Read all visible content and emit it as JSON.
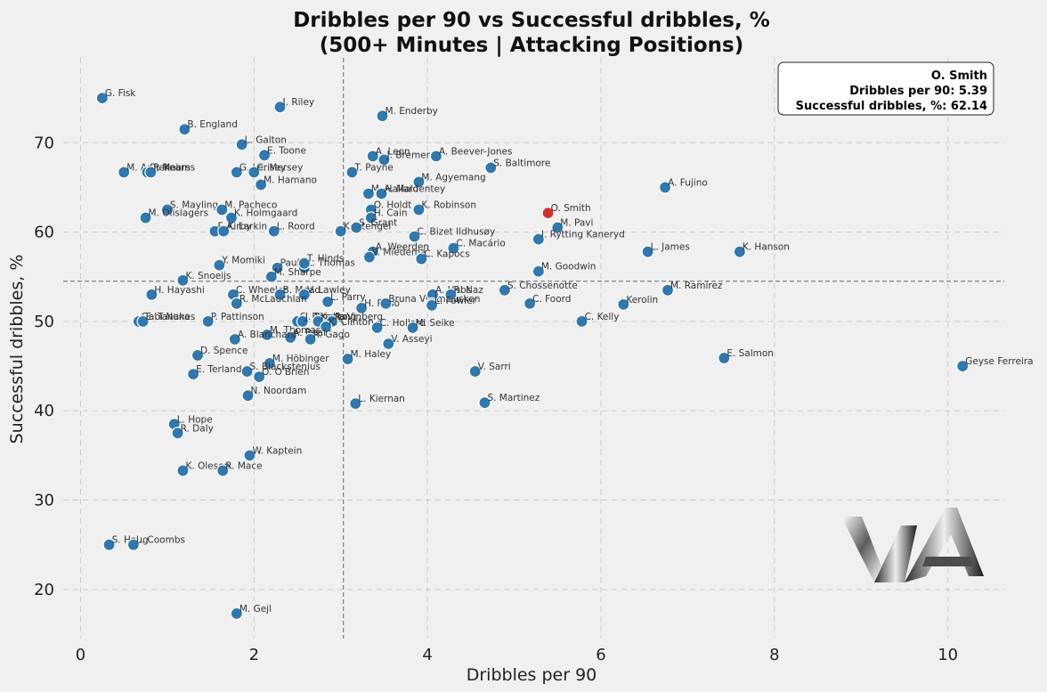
{
  "chart_data": {
    "type": "scatter",
    "title": "Dribbles per 90 vs Successful dribbles, %",
    "subtitle": "(500+ Minutes | Attacking Positions)",
    "xlabel": "Dribbles per 90",
    "ylabel": "Successful dribbles, %",
    "xlim": [
      -0.2,
      10.65
    ],
    "ylim": [
      14.5,
      79.5
    ],
    "xticks": [
      0,
      2,
      4,
      6,
      8,
      10
    ],
    "yticks": [
      20,
      30,
      40,
      50,
      60,
      70
    ],
    "grid": true,
    "reference_lines": {
      "x_mean": 3.03,
      "y_mean": 54.5
    },
    "colors": {
      "point": "#2f78b0",
      "highlight": "#d62f2f",
      "background": "#f0f0f0",
      "grid": "#cccccc",
      "ref_line": "#808080"
    },
    "highlight": {
      "name": "O. Smith",
      "x": 5.39,
      "y": 62.14
    },
    "annotation": {
      "name": "O. Smith",
      "line1": "Dribbles per 90: 5.39",
      "line2": "Successful dribbles, %: 62.14"
    },
    "points": [
      {
        "name": "G. Fisk",
        "x": 0.25,
        "y": 75.0
      },
      {
        "name": "B. England",
        "x": 1.2,
        "y": 71.5
      },
      {
        "name": "I. Riley",
        "x": 2.3,
        "y": 74.0
      },
      {
        "name": "M. Enderby",
        "x": 3.48,
        "y": 73.0
      },
      {
        "name": "L. Galton",
        "x": 1.86,
        "y": 69.8
      },
      {
        "name": "E. Toone",
        "x": 2.12,
        "y": 68.6
      },
      {
        "name": "A. Leon",
        "x": 3.37,
        "y": 68.5
      },
      {
        "name": "J. Bremer",
        "x": 3.5,
        "y": 68.1
      },
      {
        "name": "A. Beever-Jones",
        "x": 4.1,
        "y": 68.5
      },
      {
        "name": "S. Baltimore",
        "x": 4.73,
        "y": 67.2
      },
      {
        "name": "M. Angelini",
        "x": 0.5,
        "y": 66.7
      },
      {
        "name": "R. Mears",
        "x": 0.77,
        "y": 66.7
      },
      {
        "name": "P. Kearns",
        "x": 0.81,
        "y": 66.7
      },
      {
        "name": "G. Lerisey",
        "x": 1.8,
        "y": 66.7
      },
      {
        "name": "C. Mersey",
        "x": 2.0,
        "y": 66.7
      },
      {
        "name": "T. Payne",
        "x": 3.13,
        "y": 66.7
      },
      {
        "name": "M. Hamano",
        "x": 2.08,
        "y": 65.3
      },
      {
        "name": "M. Agyemang",
        "x": 3.9,
        "y": 65.6
      },
      {
        "name": "M. Hallard",
        "x": 3.32,
        "y": 64.3
      },
      {
        "name": "A. Maldentey",
        "x": 3.47,
        "y": 64.3
      },
      {
        "name": "A. Fujino",
        "x": 6.74,
        "y": 65.0
      },
      {
        "name": "S. Mayling",
        "x": 1.0,
        "y": 62.5
      },
      {
        "name": "M. Pacheco",
        "x": 1.63,
        "y": 62.5
      },
      {
        "name": "M. Olislagers",
        "x": 0.75,
        "y": 61.6
      },
      {
        "name": "K. Holmgaard",
        "x": 1.74,
        "y": 61.6
      },
      {
        "name": "O. Holdt",
        "x": 3.35,
        "y": 62.5
      },
      {
        "name": "H. Cain",
        "x": 3.35,
        "y": 61.6
      },
      {
        "name": "K. Robinson",
        "x": 3.9,
        "y": 62.5
      },
      {
        "name": "O. Smith",
        "x": 5.39,
        "y": 62.14
      },
      {
        "name": "M. Pavi",
        "x": 5.5,
        "y": 60.5
      },
      {
        "name": "F. Kirby",
        "x": 1.55,
        "y": 60.1
      },
      {
        "name": "A. Larkin",
        "x": 1.65,
        "y": 60.1
      },
      {
        "name": "L. Roord",
        "x": 2.23,
        "y": 60.1
      },
      {
        "name": "K. Stengel",
        "x": 3.0,
        "y": 60.1
      },
      {
        "name": "S. Grant",
        "x": 3.18,
        "y": 60.5
      },
      {
        "name": "C. Bizet Ildhusøy",
        "x": 3.85,
        "y": 59.5
      },
      {
        "name": "C. Macário",
        "x": 4.3,
        "y": 58.2
      },
      {
        "name": "I. Rytting Kaneryd",
        "x": 5.28,
        "y": 59.2
      },
      {
        "name": "A. Weerden",
        "x": 3.37,
        "y": 57.8
      },
      {
        "name": "V. Miedema",
        "x": 3.33,
        "y": 57.2
      },
      {
        "name": "C. Kapocs",
        "x": 3.93,
        "y": 57.0
      },
      {
        "name": "L. James",
        "x": 6.54,
        "y": 57.8
      },
      {
        "name": "K. Hanson",
        "x": 7.6,
        "y": 57.8
      },
      {
        "name": "Y. Momiki",
        "x": 1.6,
        "y": 56.3
      },
      {
        "name": "Paula",
        "x": 2.27,
        "y": 56.0
      },
      {
        "name": "L. Thomas",
        "x": 2.58,
        "y": 56.0
      },
      {
        "name": "T. Hinds",
        "x": 2.58,
        "y": 56.5
      },
      {
        "name": "M. Sharpe",
        "x": 2.2,
        "y": 55.0
      },
      {
        "name": "M. Goodwin",
        "x": 5.28,
        "y": 55.6
      },
      {
        "name": "K. Snoeijs",
        "x": 1.18,
        "y": 54.6
      },
      {
        "name": "H. Hayashi",
        "x": 0.82,
        "y": 53.0
      },
      {
        "name": "C. Wheeler",
        "x": 1.76,
        "y": 53.0
      },
      {
        "name": "B. Mead",
        "x": 2.3,
        "y": 53.0
      },
      {
        "name": "V. Lawley",
        "x": 2.58,
        "y": 53.0
      },
      {
        "name": "R. McLauchlan",
        "x": 1.8,
        "y": 52.0
      },
      {
        "name": "L. Parry",
        "x": 2.85,
        "y": 52.2
      },
      {
        "name": "H. Raso",
        "x": 3.24,
        "y": 51.5
      },
      {
        "name": "Bruna Vilamala",
        "x": 3.52,
        "y": 52.0
      },
      {
        "name": "A. Hobs",
        "x": 4.06,
        "y": 53.0
      },
      {
        "name": "L. Nüsken",
        "x": 4.05,
        "y": 52.0
      },
      {
        "name": "R. Naz",
        "x": 4.27,
        "y": 53.0
      },
      {
        "name": "L. Fowler",
        "x": 4.05,
        "y": 51.8
      },
      {
        "name": "S. Chossenotte",
        "x": 4.89,
        "y": 53.5
      },
      {
        "name": "C. Foord",
        "x": 5.18,
        "y": 52.0
      },
      {
        "name": "Kerolin",
        "x": 6.26,
        "y": 51.9
      },
      {
        "name": "M. Ramírez",
        "x": 6.77,
        "y": 53.5
      },
      {
        "name": "Gabi Nunes",
        "x": 0.67,
        "y": 50.0
      },
      {
        "name": "E. Tanaka",
        "x": 0.72,
        "y": 50.0
      },
      {
        "name": "P. Pattinson",
        "x": 1.47,
        "y": 50.0
      },
      {
        "name": "S. Picanço",
        "x": 2.5,
        "y": 50.0
      },
      {
        "name": "J. Pinedo",
        "x": 2.56,
        "y": 50.0
      },
      {
        "name": "K. Kang",
        "x": 2.74,
        "y": 50.0
      },
      {
        "name": "R. Vinberg",
        "x": 2.9,
        "y": 50.0
      },
      {
        "name": "K. Clinton",
        "x": 2.83,
        "y": 49.4
      },
      {
        "name": "C. Hollard",
        "x": 3.42,
        "y": 49.3
      },
      {
        "name": "M. Seike",
        "x": 3.83,
        "y": 49.3
      },
      {
        "name": "C. Kelly",
        "x": 5.78,
        "y": 50.0
      },
      {
        "name": "M. Thomas",
        "x": 2.15,
        "y": 48.5
      },
      {
        "name": "A. Beal",
        "x": 2.42,
        "y": 48.2
      },
      {
        "name": "R. Gago",
        "x": 2.65,
        "y": 48.0
      },
      {
        "name": "A. Blanchard",
        "x": 1.78,
        "y": 48.0
      },
      {
        "name": "V. Asseyi",
        "x": 3.55,
        "y": 47.5
      },
      {
        "name": "D. Spence",
        "x": 1.35,
        "y": 46.2
      },
      {
        "name": "M. Höbinger",
        "x": 2.18,
        "y": 45.3
      },
      {
        "name": "M. Haley",
        "x": 3.08,
        "y": 45.8
      },
      {
        "name": "E. Salmon",
        "x": 7.42,
        "y": 45.9
      },
      {
        "name": "Geyse Ferreira",
        "x": 10.17,
        "y": 45.0
      },
      {
        "name": "E. Terland",
        "x": 1.3,
        "y": 44.1
      },
      {
        "name": "S. Blackstenius",
        "x": 1.92,
        "y": 44.4
      },
      {
        "name": "O. O'Brien",
        "x": 2.06,
        "y": 43.8
      },
      {
        "name": "V. Sarri",
        "x": 4.55,
        "y": 44.4
      },
      {
        "name": "N. Noordam",
        "x": 1.93,
        "y": 41.7
      },
      {
        "name": "L. Kiernan",
        "x": 3.17,
        "y": 40.8
      },
      {
        "name": "S. Martinez",
        "x": 4.66,
        "y": 40.9
      },
      {
        "name": "L. Hope",
        "x": 1.08,
        "y": 38.5
      },
      {
        "name": "R. Daly",
        "x": 1.12,
        "y": 37.5
      },
      {
        "name": "W. Kaptein",
        "x": 1.95,
        "y": 35.0
      },
      {
        "name": "K. Olesen",
        "x": 1.18,
        "y": 33.3
      },
      {
        "name": "R. Mace",
        "x": 1.64,
        "y": 33.3
      },
      {
        "name": "S. Haug",
        "x": 0.33,
        "y": 25.0
      },
      {
        "name": "L. Coombs",
        "x": 0.61,
        "y": 25.0
      },
      {
        "name": "M. Gejl",
        "x": 1.8,
        "y": 17.3
      }
    ]
  }
}
